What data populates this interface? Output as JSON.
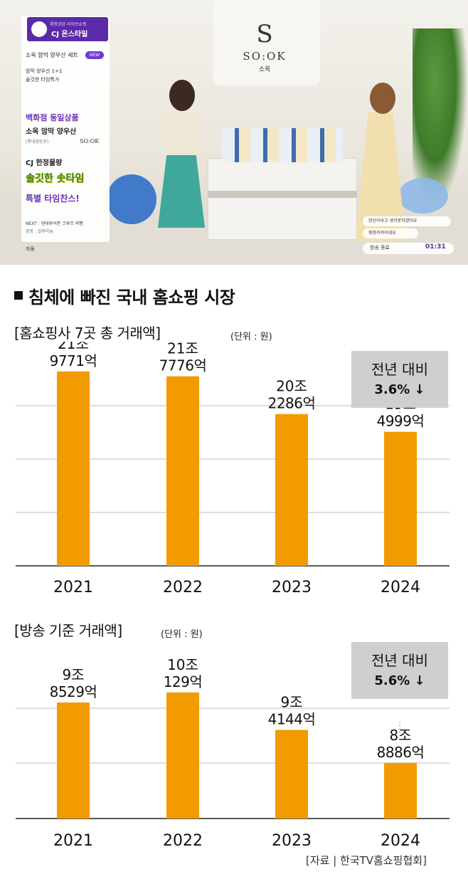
{
  "broadcast": {
    "studio_logo_symbol": "S",
    "studio_logo": "SO:OK",
    "studio_logo_korean": "소옥",
    "channel_tagline": "취향공감 라이브쇼핑",
    "channel_name": "CJ 온스타일",
    "product_title": "소옥 암막 양우산 세트",
    "new_badge": "NEW",
    "offer_line1": "암막 양우산 1+1",
    "offer_line2": "솔깃한 타임특가",
    "dept_store": "백화점 동일상품",
    "product_name": "소옥 암막 양우산",
    "store_note": "(롯데영등포)",
    "brand_small": "SO:OK",
    "limited": "CJ 한정물량",
    "promo": "솔깃한 솟타임",
    "special": "특별 타임찬스!",
    "next_label": "NEXT : 현대투어존 크루즈 여행",
    "next_sub": "중봉 : 알루미늄",
    "auto_label": "자동",
    "chat_1": "양산이라고 생각못하겠어요",
    "chat_2": "취향저격이네요",
    "air_end": "방송 종료",
    "air_time": "01:31"
  },
  "infographic": {
    "heading": "침체에 빠진 국내 홈쇼핑 시장",
    "source": "[자료 | 한국TV홈쇼핑협회]"
  },
  "chart_data": [
    {
      "type": "bar",
      "title": "[홈쇼핑사 7곳 총 거래액]",
      "unit_label": "(단위 : 원)",
      "categories": [
        "2021",
        "2022",
        "2023",
        "2024"
      ],
      "values": [
        219771,
        217776,
        202286,
        194999
      ],
      "value_unit": "억원",
      "data_labels": [
        [
          "21조",
          "9771억"
        ],
        [
          "21조",
          "7776억"
        ],
        [
          "20조",
          "2286억"
        ],
        [
          "19조",
          "4999억"
        ]
      ],
      "callout": {
        "line1": "전년 대비",
        "line2": "3.6% ↓"
      },
      "ylim": [
        140000,
        232000
      ],
      "bar_color": "#f29b00",
      "grid": true
    },
    {
      "type": "bar",
      "title": "[방송 기준 거래액]",
      "unit_label": "(단위 : 원)",
      "categories": [
        "2021",
        "2022",
        "2023",
        "2024"
      ],
      "values": [
        98529,
        100129,
        94144,
        88886
      ],
      "value_unit": "억원",
      "data_labels": [
        [
          "9조",
          "8529억"
        ],
        [
          "10조",
          "129억"
        ],
        [
          "9조",
          "4144억"
        ],
        [
          "8조",
          "8886억"
        ]
      ],
      "callout": {
        "line1": "전년 대비",
        "line2": "5.6% ↓"
      },
      "ylim": [
        80000,
        102500
      ],
      "bar_color": "#f29b00",
      "grid": true
    }
  ]
}
